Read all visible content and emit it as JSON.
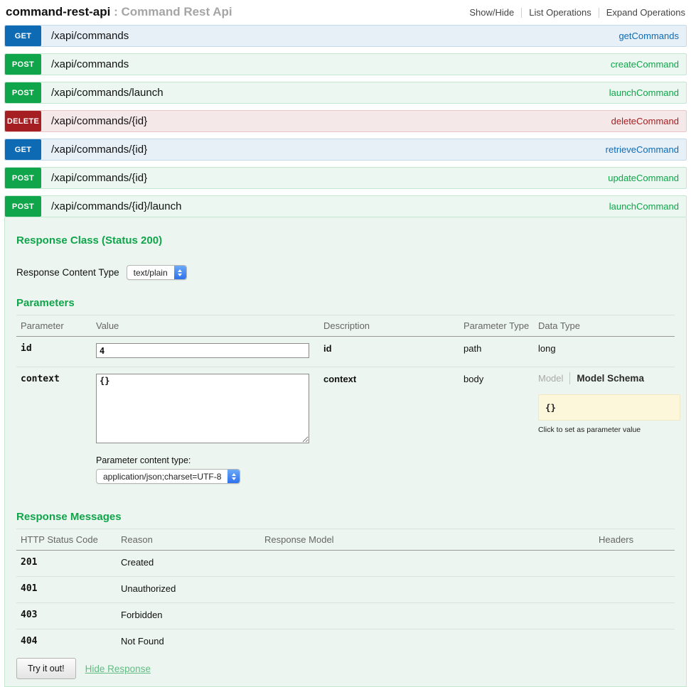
{
  "header": {
    "api_name": "command-rest-api",
    "separator": " : ",
    "api_title": "Command Rest Api",
    "links": {
      "show_hide": "Show/Hide",
      "list_operations": "List Operations",
      "expand_operations": "Expand Operations"
    }
  },
  "operations": [
    {
      "method": "GET",
      "path": "/xapi/commands",
      "nickname": "getCommands"
    },
    {
      "method": "POST",
      "path": "/xapi/commands",
      "nickname": "createCommand"
    },
    {
      "method": "POST",
      "path": "/xapi/commands/launch",
      "nickname": "launchCommand"
    },
    {
      "method": "DELETE",
      "path": "/xapi/commands/{id}",
      "nickname": "deleteCommand"
    },
    {
      "method": "GET",
      "path": "/xapi/commands/{id}",
      "nickname": "retrieveCommand"
    },
    {
      "method": "POST",
      "path": "/xapi/commands/{id}",
      "nickname": "updateCommand"
    },
    {
      "method": "POST",
      "path": "/xapi/commands/{id}/launch",
      "nickname": "launchCommand"
    }
  ],
  "detail": {
    "response_class_heading": "Response Class (Status 200)",
    "response_content_type_label": "Response Content Type",
    "response_content_type_value": "text/plain",
    "parameters_heading": "Parameters",
    "param_table_headers": {
      "parameter": "Parameter",
      "value": "Value",
      "description": "Description",
      "parameter_type": "Parameter Type",
      "data_type": "Data Type"
    },
    "params": [
      {
        "name": "id",
        "value": "4",
        "description": "id",
        "param_type": "path",
        "data_type": "long"
      },
      {
        "name": "context",
        "value": "{}",
        "description": "context",
        "param_type": "body"
      }
    ],
    "param_content_type_label": "Parameter content type:",
    "param_content_type_value": "application/json;charset=UTF-8",
    "model_tabs": {
      "model": "Model",
      "model_schema": "Model Schema"
    },
    "model_snippet": "{}",
    "model_caption": "Click to set as parameter value",
    "response_messages_heading": "Response Messages",
    "response_table_headers": {
      "code": "HTTP Status Code",
      "reason": "Reason",
      "response_model": "Response Model",
      "headers": "Headers"
    },
    "responses": [
      {
        "code": "201",
        "reason": "Created"
      },
      {
        "code": "401",
        "reason": "Unauthorized"
      },
      {
        "code": "403",
        "reason": "Forbidden"
      },
      {
        "code": "404",
        "reason": "Not Found"
      }
    ],
    "try_button": "Try it out!",
    "hide_response_link": "Hide Response"
  },
  "colors": {
    "get_blue": "#0f6ab4",
    "post_green": "#10a54a",
    "delete_red": "#a41e22",
    "heading_green": "#10a54a",
    "model_snippet_bg": "#fcf6db",
    "content_bg": "#ecf5f0"
  }
}
